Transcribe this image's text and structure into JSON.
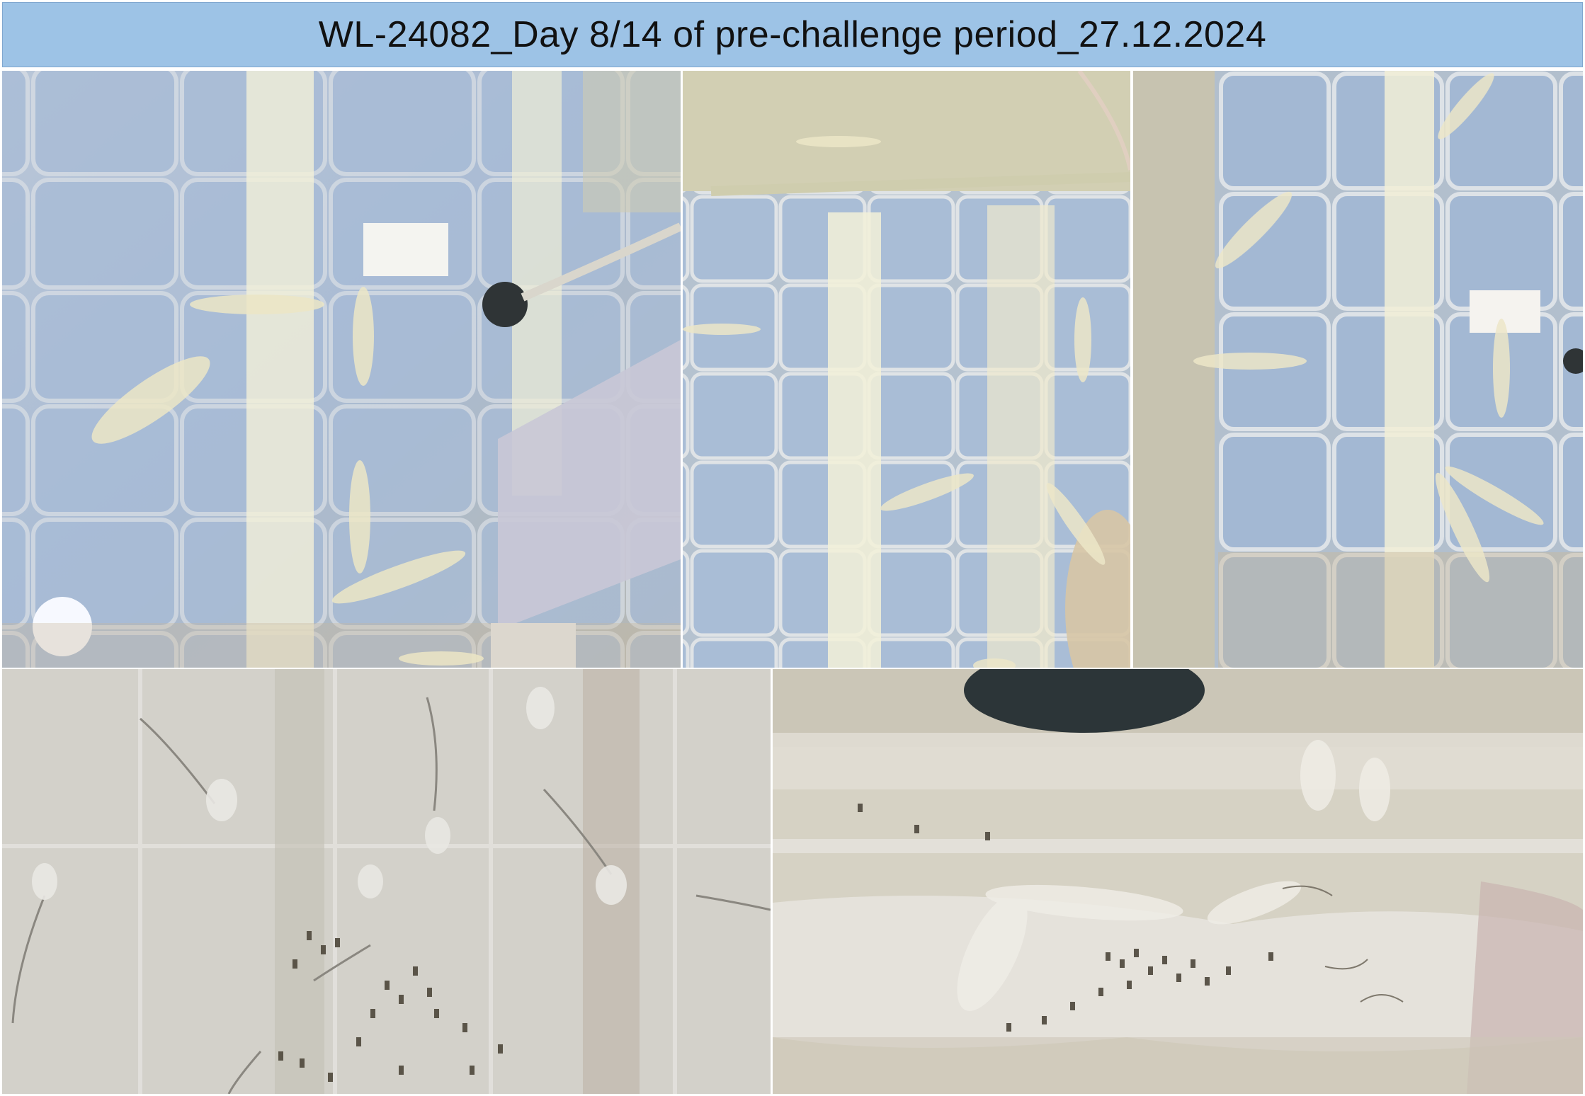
{
  "header": {
    "title": "WL-24082_Day 8/14 of pre-challenge period_27.12.2024",
    "background_color": "#9dc3e6"
  },
  "photos": [
    {
      "subject": "shrimp-in-tank-with-air-pipe"
    },
    {
      "subject": "shrimp-in-tank-corner"
    },
    {
      "subject": "shrimp-in-tank-with-feeding-tray"
    },
    {
      "subject": "shrimp-with-feed-pellets"
    },
    {
      "subject": "shrimp-feeding-close-up"
    }
  ]
}
